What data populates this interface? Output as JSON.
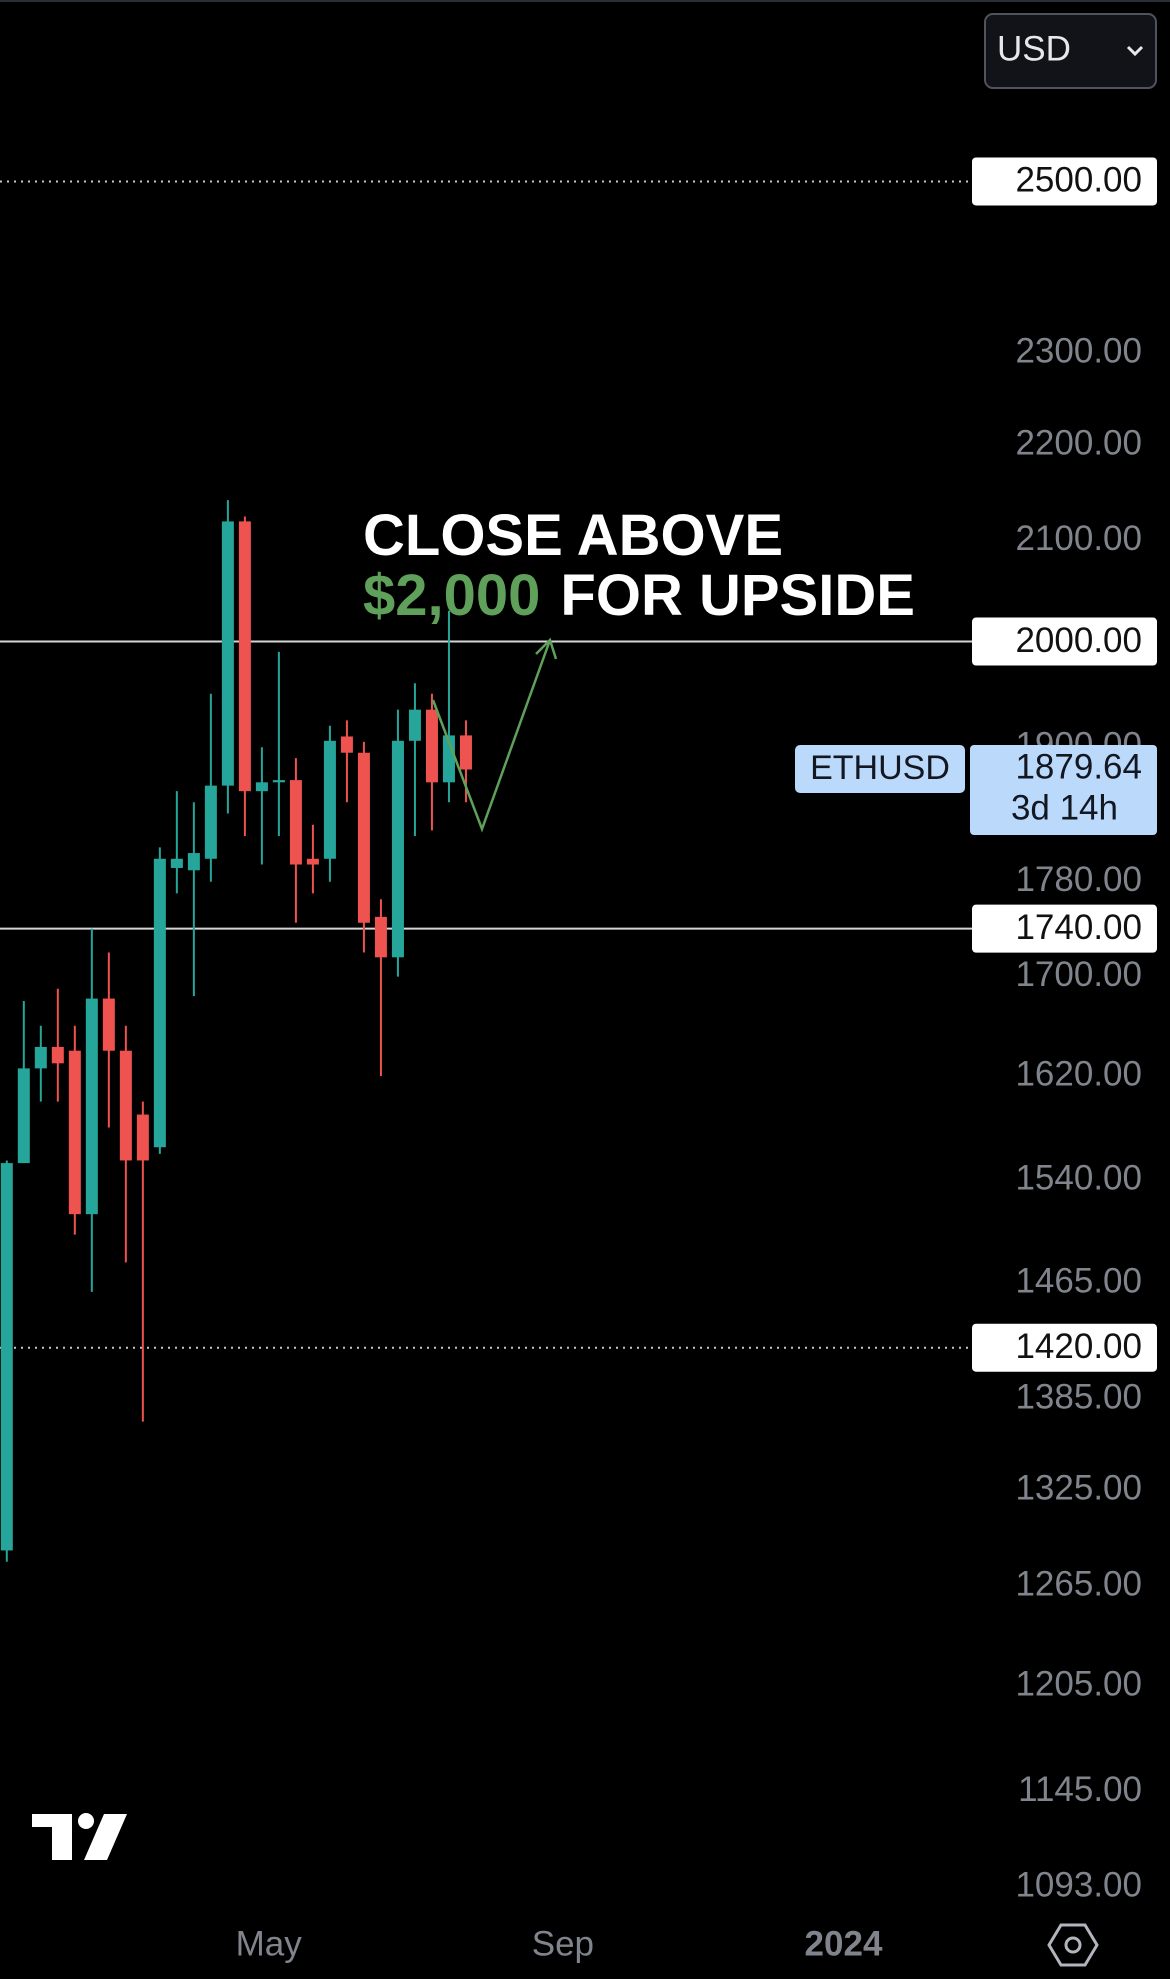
{
  "chart_data": {
    "type": "candlestick",
    "log_scale": true,
    "up_color": "#26a69a",
    "down_color": "#ef5350",
    "x": [
      0,
      1,
      2,
      3,
      4,
      5,
      6,
      7,
      8,
      9,
      10,
      11,
      12,
      13,
      14,
      15,
      16,
      17,
      18,
      19,
      20,
      21,
      22,
      23,
      24,
      25,
      26,
      27
    ],
    "open": [
      1287,
      1553,
      1626,
      1643,
      1640,
      1515,
      1682,
      1640,
      1590,
      1565,
      1792,
      1790,
      1800,
      1865,
      2120,
      1860,
      1868,
      1870,
      1800,
      1800,
      1910,
      1895,
      1750,
      1716,
      1906,
      1935,
      1868,
      1911
    ],
    "high": [
      1555,
      1680,
      1660,
      1690,
      1660,
      1740,
      1720,
      1660,
      1600,
      1810,
      1860,
      1850,
      1950,
      2142,
      2125,
      1900,
      1990,
      1890,
      1830,
      1920,
      1925,
      1905,
      1765,
      1935,
      1960,
      1950,
      2030,
      1925
    ],
    "low": [
      1280,
      1553,
      1600,
      1600,
      1500,
      1459,
      1580,
      1480,
      1370,
      1560,
      1770,
      1684,
      1780,
      1840,
      1820,
      1795,
      1820,
      1745,
      1770,
      1780,
      1850,
      1720,
      1620,
      1700,
      1820,
      1825,
      1850,
      1850
    ],
    "close": [
      1553,
      1626,
      1643,
      1630,
      1515,
      1682,
      1640,
      1555,
      1555,
      1800,
      1800,
      1805,
      1865,
      2120,
      1860,
      1868,
      1870,
      1795,
      1795,
      1906,
      1895,
      1745,
      1716,
      1906,
      1935,
      1868,
      1911,
      1879.64
    ],
    "xlim": [
      -0.4,
      68.4
    ],
    "xticks": [
      {
        "value": 15.4,
        "label": "May"
      },
      {
        "value": 32.7,
        "label": "Sep"
      },
      {
        "value": 49.2,
        "label": "2024",
        "bold": true
      }
    ],
    "ylim": [
      1080,
      2730
    ],
    "yticks": [
      {
        "value": 2300,
        "label": "2300.00"
      },
      {
        "value": 2200,
        "label": "2200.00"
      },
      {
        "value": 2100,
        "label": "2100.00"
      },
      {
        "value": 1900,
        "label": "1900.00"
      },
      {
        "value": 1780,
        "label": "1780.00"
      },
      {
        "value": 1700,
        "label": "1700.00"
      },
      {
        "value": 1620,
        "label": "1620.00"
      },
      {
        "value": 1540,
        "label": "1540.00"
      },
      {
        "value": 1465,
        "label": "1465.00"
      },
      {
        "value": 1385,
        "label": "1385.00"
      },
      {
        "value": 1325,
        "label": "1325.00"
      },
      {
        "value": 1265,
        "label": "1265.00"
      },
      {
        "value": 1205,
        "label": "1205.00"
      },
      {
        "value": 1145,
        "label": "1145.00"
      },
      {
        "value": 1093,
        "label": "1093.00"
      }
    ],
    "levels": [
      {
        "value": 2500,
        "label": "2500.00",
        "style": "dotted"
      },
      {
        "value": 2000,
        "label": "2000.00",
        "style": "solid"
      },
      {
        "value": 1740,
        "label": "1740.00",
        "style": "solid"
      },
      {
        "value": 1420,
        "label": "1420.00",
        "style": "dotted"
      }
    ],
    "symbol": "ETHUSD",
    "countdown": "3d 14h",
    "currency": "USD",
    "annotation": {
      "line1": "CLOSE ABOVE",
      "highlight": "$2,000",
      "rest": "FOR UPSIDE",
      "highlight_color": "#5fa05a"
    }
  }
}
